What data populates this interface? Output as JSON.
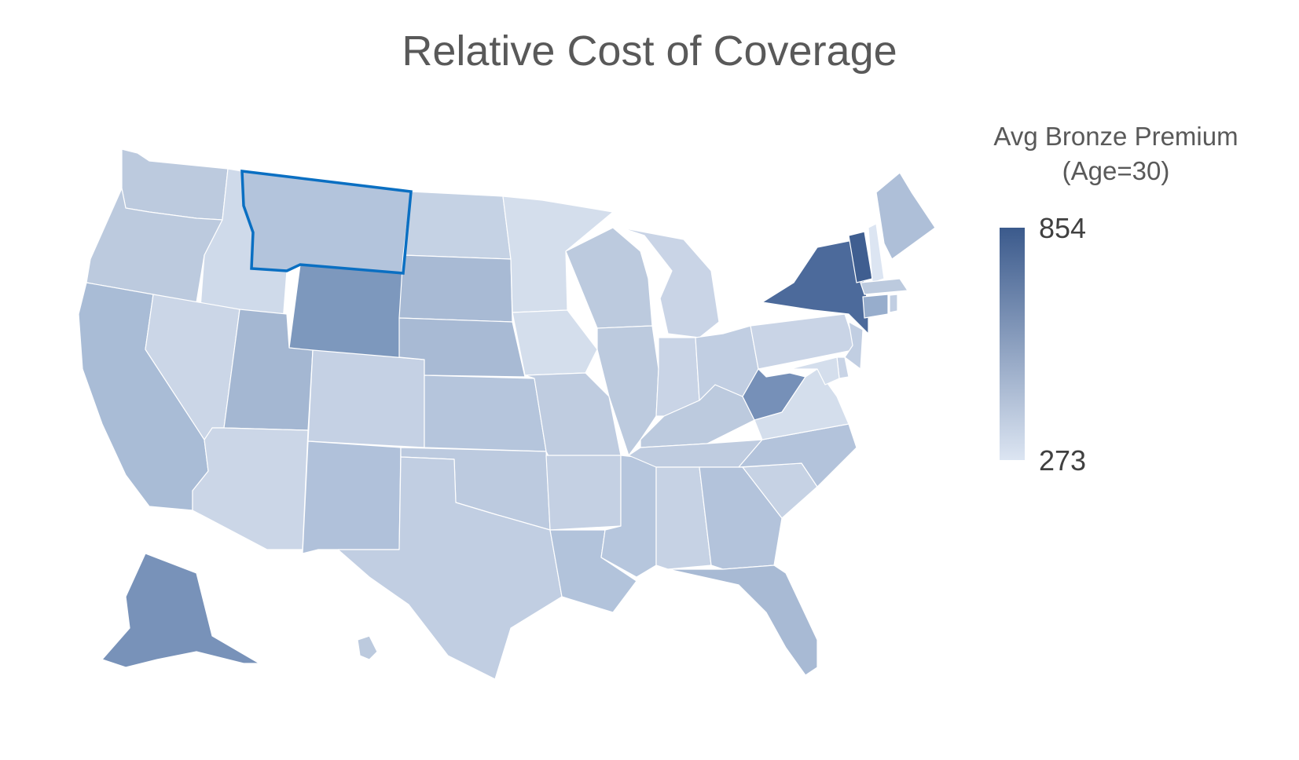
{
  "title": "Relative Cost of Coverage",
  "legend": {
    "title_line1": "Avg Bronze Premium",
    "title_line2": "(Age=30)",
    "max_label": "854",
    "min_label": "273",
    "max_color": "#3b5a8c",
    "min_color": "#dce5f2"
  },
  "colors": {
    "background": "#ffffff",
    "title_text": "#595959",
    "state_border": "#ffffff",
    "highlight_border": "#0a6fc2"
  },
  "highlighted_state": "MT",
  "states": [
    {
      "id": "WA",
      "color": "#bccade"
    },
    {
      "id": "OR",
      "color": "#bccade"
    },
    {
      "id": "CA",
      "color": "#a9bcd6"
    },
    {
      "id": "ID",
      "color": "#cfdaea"
    },
    {
      "id": "NV",
      "color": "#cbd6e7"
    },
    {
      "id": "MT",
      "color": "#b3c4dc"
    },
    {
      "id": "WY",
      "color": "#7d98bd"
    },
    {
      "id": "UT",
      "color": "#a4b7d2"
    },
    {
      "id": "AZ",
      "color": "#cbd6e7"
    },
    {
      "id": "CO",
      "color": "#c5d1e4"
    },
    {
      "id": "NM",
      "color": "#b0c1da"
    },
    {
      "id": "ND",
      "color": "#c5d2e4"
    },
    {
      "id": "SD",
      "color": "#a8bad4"
    },
    {
      "id": "NE",
      "color": "#a8bad4"
    },
    {
      "id": "KS",
      "color": "#b5c5dc"
    },
    {
      "id": "OK",
      "color": "#bccadf"
    },
    {
      "id": "TX",
      "color": "#c1cee2"
    },
    {
      "id": "MN",
      "color": "#d4deec"
    },
    {
      "id": "IA",
      "color": "#d4deec"
    },
    {
      "id": "MO",
      "color": "#bfcce0"
    },
    {
      "id": "AR",
      "color": "#c4d0e3"
    },
    {
      "id": "LA",
      "color": "#b2c3db"
    },
    {
      "id": "WI",
      "color": "#bccade"
    },
    {
      "id": "IL",
      "color": "#bccade"
    },
    {
      "id": "MS",
      "color": "#b6c6dd"
    },
    {
      "id": "MI",
      "color": "#c9d4e6"
    },
    {
      "id": "IN",
      "color": "#c9d4e6"
    },
    {
      "id": "KY",
      "color": "#bccade"
    },
    {
      "id": "TN",
      "color": "#bfcce0"
    },
    {
      "id": "AL",
      "color": "#c6d2e4"
    },
    {
      "id": "OH",
      "color": "#c1cee2"
    },
    {
      "id": "WV",
      "color": "#7690b8"
    },
    {
      "id": "GA",
      "color": "#b3c3db"
    },
    {
      "id": "FL",
      "color": "#a8bad4"
    },
    {
      "id": "SC",
      "color": "#c6d2e4"
    },
    {
      "id": "NC",
      "color": "#b3c3db"
    },
    {
      "id": "VA",
      "color": "#d4deec"
    },
    {
      "id": "PA",
      "color": "#c9d4e6"
    },
    {
      "id": "NY",
      "color": "#4c6a9b"
    },
    {
      "id": "VT",
      "color": "#3f5e90"
    },
    {
      "id": "NH",
      "color": "#dce5f2"
    },
    {
      "id": "ME",
      "color": "#aebfd8"
    },
    {
      "id": "MA",
      "color": "#bccade"
    },
    {
      "id": "CT",
      "color": "#97adcc"
    },
    {
      "id": "RI",
      "color": "#c1cee2"
    },
    {
      "id": "NJ",
      "color": "#c1cee2"
    },
    {
      "id": "DE",
      "color": "#c9d4e6"
    },
    {
      "id": "MD",
      "color": "#d4deec"
    },
    {
      "id": "AK",
      "color": "#7892b9"
    },
    {
      "id": "HI",
      "color": "#bccade"
    }
  ]
}
